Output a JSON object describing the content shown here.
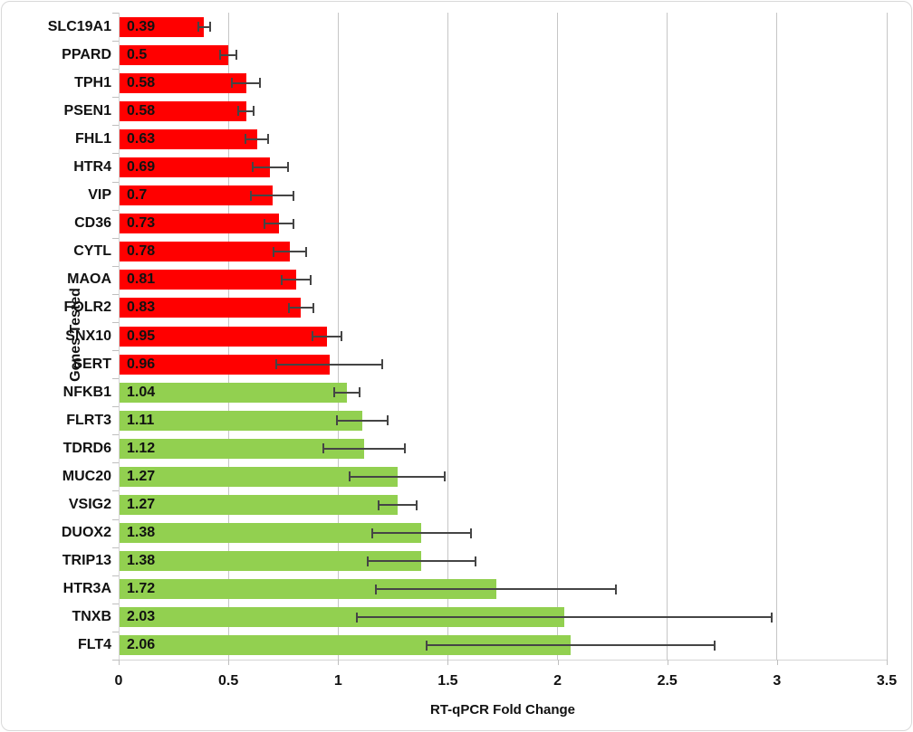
{
  "chart_data": {
    "type": "bar",
    "orientation": "horizontal",
    "title": "",
    "xlabel": "RT-qPCR Fold Change",
    "ylabel": "Genes Tested",
    "xlim": [
      0,
      3.5
    ],
    "xticks": [
      0,
      0.5,
      1,
      1.5,
      2,
      2.5,
      3,
      3.5
    ],
    "xtick_labels": [
      "0",
      "0.5",
      "1",
      "1.5",
      "2",
      "2.5",
      "3",
      "3.5"
    ],
    "grid": "vertical",
    "legend": "none",
    "value_labels_position": "inside-left",
    "error_bars": "horizontal",
    "colors": {
      "downregulated": "#ff0000",
      "upregulated": "#92d050",
      "error_bar": "#454545",
      "gridline": "#c6c6c6",
      "text": "#111111"
    },
    "genes": [
      {
        "name": "SLC19A1",
        "value": 0.39,
        "label": "0.39",
        "error": 0.03,
        "color": "#ff0000"
      },
      {
        "name": "PPARD",
        "value": 0.5,
        "label": "0.5",
        "error": 0.04,
        "color": "#ff0000"
      },
      {
        "name": "TPH1",
        "value": 0.58,
        "label": "0.58",
        "error": 0.07,
        "color": "#ff0000"
      },
      {
        "name": "PSEN1",
        "value": 0.58,
        "label": "0.58",
        "error": 0.04,
        "color": "#ff0000"
      },
      {
        "name": "FHL1",
        "value": 0.63,
        "label": "0.63",
        "error": 0.055,
        "color": "#ff0000"
      },
      {
        "name": "HTR4",
        "value": 0.69,
        "label": "0.69",
        "error": 0.085,
        "color": "#ff0000"
      },
      {
        "name": "VIP",
        "value": 0.7,
        "label": "0.7",
        "error": 0.1,
        "color": "#ff0000"
      },
      {
        "name": "CD36",
        "value": 0.73,
        "label": "0.73",
        "error": 0.07,
        "color": "#ff0000"
      },
      {
        "name": "CYTL",
        "value": 0.78,
        "label": "0.78",
        "error": 0.08,
        "color": "#ff0000"
      },
      {
        "name": "MAOA",
        "value": 0.81,
        "label": "0.81",
        "error": 0.07,
        "color": "#ff0000"
      },
      {
        "name": "FOLR2",
        "value": 0.83,
        "label": "0.83",
        "error": 0.06,
        "color": "#ff0000"
      },
      {
        "name": "SNX10",
        "value": 0.95,
        "label": "0.95",
        "error": 0.07,
        "color": "#ff0000"
      },
      {
        "name": "SERT",
        "value": 0.96,
        "label": "0.96",
        "error": 0.245,
        "color": "#ff0000"
      },
      {
        "name": "NFKB1",
        "value": 1.04,
        "label": "1.04",
        "error": 0.06,
        "color": "#92d050"
      },
      {
        "name": "FLRT3",
        "value": 1.11,
        "label": "1.11",
        "error": 0.12,
        "color": "#92d050"
      },
      {
        "name": "TDRD6",
        "value": 1.12,
        "label": "1.12",
        "error": 0.19,
        "color": "#92d050"
      },
      {
        "name": "MUC20",
        "value": 1.27,
        "label": "1.27",
        "error": 0.22,
        "color": "#92d050"
      },
      {
        "name": "VSIG2",
        "value": 1.27,
        "label": "1.27",
        "error": 0.09,
        "color": "#92d050"
      },
      {
        "name": "DUOX2",
        "value": 1.38,
        "label": "1.38",
        "error": 0.23,
        "color": "#92d050"
      },
      {
        "name": "TRIP13",
        "value": 1.38,
        "label": "1.38",
        "error": 0.25,
        "color": "#92d050"
      },
      {
        "name": "HTR3A",
        "value": 1.72,
        "label": "1.72",
        "error": 0.55,
        "color": "#92d050"
      },
      {
        "name": "TNXB",
        "value": 2.03,
        "label": "2.03",
        "error": 0.95,
        "color": "#92d050"
      },
      {
        "name": "FLT4",
        "value": 2.06,
        "label": "2.06",
        "error": 0.66,
        "color": "#92d050"
      }
    ]
  }
}
